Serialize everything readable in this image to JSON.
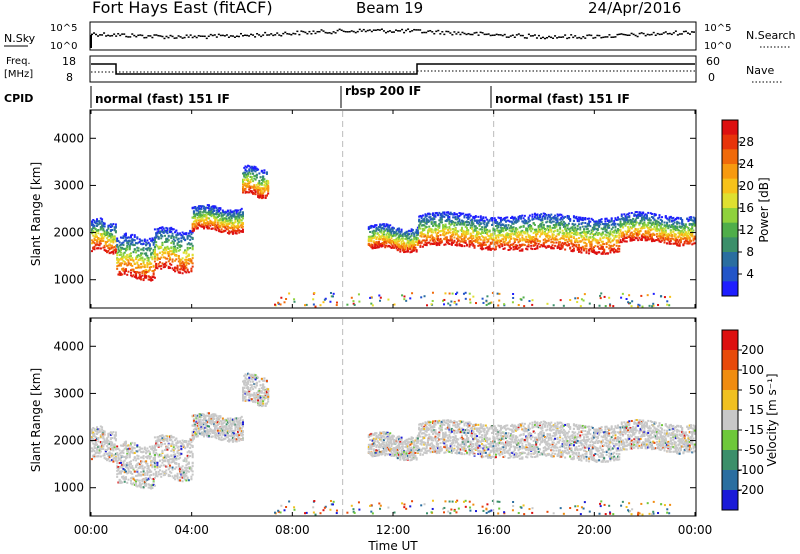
{
  "header": {
    "radar": "Fort Hays East (fitACF)",
    "beam": "Beam 19",
    "date": "24/Apr/2016"
  },
  "noise_panel": {
    "left_label": "N.Sky",
    "left_ticks": [
      "10^5",
      "10^0"
    ],
    "right_label": "N.Search",
    "right_ticks": [
      "10^5",
      "10^0"
    ]
  },
  "freq_panel": {
    "left_label_1": "Freq.",
    "left_label_2": "[MHz]",
    "left_ticks": [
      "18",
      "8"
    ],
    "right_label": "Nave",
    "right_ticks": [
      "60",
      "0"
    ]
  },
  "cpid": {
    "label": "CPID",
    "segments": [
      {
        "text": "normal (fast) 151 IF",
        "start_hour": 0.0
      },
      {
        "text": "rbsp 200 IF",
        "start_hour": 10.0
      },
      {
        "text": "normal (fast) 151 IF",
        "start_hour": 16.0
      }
    ]
  },
  "chart_data": [
    {
      "type": "heatmap",
      "title": "Power",
      "ylabel": "Slant Range [km]",
      "y_ticks": [
        "1000",
        "2000",
        "3000",
        "4000"
      ],
      "ylim": [
        400,
        4600
      ],
      "xlim": [
        0,
        24
      ],
      "colorbar_label": "Power [dB]",
      "colorbar_ticks": [
        "28",
        "24",
        "20",
        "16",
        "12",
        "8",
        "4"
      ],
      "colorbar_colors": [
        "#1e1eff",
        "#2255c8",
        "#2a6ea0",
        "#3b8f6a",
        "#4fae4a",
        "#8fd23c",
        "#dfe030",
        "#f7c21a",
        "#f79a10",
        "#f06a0a",
        "#e8340a",
        "#dd1010"
      ],
      "echo_bands": [
        {
          "x": [
            0.0,
            1.0
          ],
          "center": 1950,
          "width": 650
        },
        {
          "x": [
            1.0,
            2.5
          ],
          "center": 1500,
          "width": 900
        },
        {
          "x": [
            2.5,
            4.0
          ],
          "center": 1650,
          "width": 900
        },
        {
          "x": [
            4.0,
            6.0
          ],
          "center": 2300,
          "width": 500
        },
        {
          "x": [
            6.0,
            7.0
          ],
          "center": 3100,
          "width": 600
        },
        {
          "x": [
            11.0,
            13.0
          ],
          "center": 1900,
          "width": 500
        },
        {
          "x": [
            13.0,
            17.0
          ],
          "center": 2050,
          "width": 700
        },
        {
          "x": [
            17.0,
            21.0
          ],
          "center": 2000,
          "width": 750
        },
        {
          "x": [
            21.0,
            24.0
          ],
          "center": 2100,
          "width": 600
        }
      ]
    },
    {
      "type": "heatmap",
      "title": "Velocity",
      "ylabel": "Slant Range [km]",
      "y_ticks": [
        "1000",
        "2000",
        "3000",
        "4000"
      ],
      "ylim": [
        400,
        4600
      ],
      "xlim": [
        0,
        24
      ],
      "xlabel": "Time UT",
      "x_ticks": [
        "00:00",
        "04:00",
        "08:00",
        "12:00",
        "16:00",
        "20:00",
        "00:00"
      ],
      "colorbar_label": "Velocity [m s⁻¹]",
      "colorbar_ticks": [
        "200",
        "100",
        "50",
        "15",
        "-15",
        "-50",
        "-100",
        "-200"
      ],
      "colorbar_colors": [
        "#1a1ad8",
        "#2a6ea0",
        "#3b8f6a",
        "#6ec83a",
        "#c8c8c8",
        "#f0c020",
        "#f08c10",
        "#e84a0a",
        "#dd1010"
      ]
    }
  ],
  "dashed_lines_hours": [
    10.0,
    16.0
  ]
}
